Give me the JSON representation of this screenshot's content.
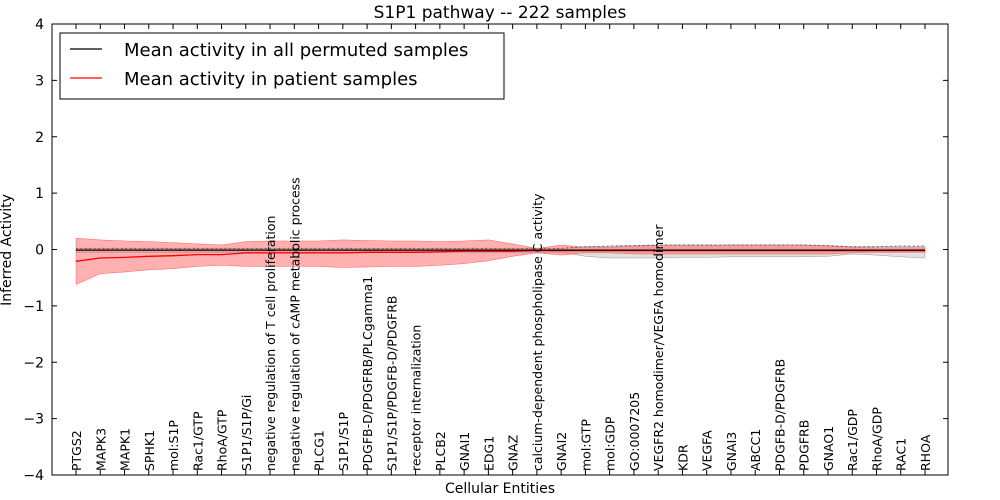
{
  "chart_data": {
    "type": "line",
    "title": "S1P1 pathway -- 222 samples",
    "xlabel": "Cellular Entities",
    "ylabel": "Inferred Activity",
    "ylim": [
      -4,
      4
    ],
    "yticks": [
      -4,
      -3,
      -2,
      -1,
      0,
      1,
      2,
      3,
      4
    ],
    "categories": [
      "PTGS2",
      "MAPK3",
      "MAPK1",
      "SPHK1",
      "mol:S1P",
      "Rac1/GTP",
      "RhoA/GTP",
      "S1P1/S1P/Gi",
      "negative regulation of T cell proliferation",
      "negative regulation of cAMP metabolic process",
      "PLCG1",
      "S1P1/S1P",
      "PDGFB-D/PDGFRB/PLCgamma1",
      "S1P1/S1P/PDGFB-D/PDGFRB",
      "receptor internalization",
      "PLCB2",
      "GNAI1",
      "EDG1",
      "GNAZ",
      "calcium-dependent phospholipase C activity",
      "GNAI2",
      "mol:GTP",
      "mol:GDP",
      "GO:0007205",
      "VEGFR2 homodimer/VEGFA homodimer",
      "KDR",
      "VEGFA",
      "GNAI3",
      "ABCC1",
      "PDGFB-D/PDGFRB",
      "PDGFRB",
      "GNAO1",
      "Rac1/GDP",
      "RhoA/GDP",
      "RAC1",
      "RHOA"
    ],
    "legend_position": "top-left",
    "series": [
      {
        "name": "Mean activity in all permuted samples",
        "color": "#000000",
        "values": [
          -0.01,
          -0.01,
          -0.01,
          -0.01,
          -0.01,
          -0.01,
          -0.01,
          -0.01,
          -0.01,
          -0.01,
          -0.01,
          -0.01,
          -0.01,
          -0.01,
          -0.01,
          -0.01,
          -0.01,
          -0.01,
          -0.01,
          -0.01,
          -0.01,
          -0.01,
          -0.01,
          -0.01,
          -0.01,
          -0.01,
          -0.01,
          -0.01,
          -0.01,
          -0.01,
          -0.01,
          -0.01,
          -0.01,
          -0.01,
          -0.01,
          -0.01
        ],
        "band_lower": [
          -0.05,
          -0.05,
          -0.05,
          -0.05,
          -0.05,
          -0.05,
          -0.05,
          -0.05,
          -0.05,
          -0.05,
          -0.05,
          -0.05,
          -0.05,
          -0.05,
          -0.05,
          -0.05,
          -0.05,
          -0.05,
          -0.05,
          -0.05,
          -0.05,
          -0.12,
          -0.15,
          -0.15,
          -0.15,
          -0.14,
          -0.14,
          -0.13,
          -0.13,
          -0.13,
          -0.13,
          -0.12,
          -0.08,
          -0.1,
          -0.13,
          -0.15
        ],
        "band_upper": [
          0.02,
          0.02,
          0.02,
          0.02,
          0.02,
          0.02,
          0.02,
          0.02,
          0.02,
          0.02,
          0.02,
          0.02,
          0.02,
          0.02,
          0.02,
          0.02,
          0.02,
          0.02,
          0.02,
          0.02,
          0.02,
          0.05,
          0.06,
          0.07,
          0.08,
          0.08,
          0.08,
          0.08,
          0.08,
          0.08,
          0.08,
          0.07,
          0.05,
          0.05,
          0.06,
          0.06
        ]
      },
      {
        "name": "Mean activity in patient samples",
        "color": "#ff0000",
        "values": [
          -0.21,
          -0.15,
          -0.14,
          -0.12,
          -0.11,
          -0.09,
          -0.09,
          -0.06,
          -0.06,
          -0.06,
          -0.06,
          -0.06,
          -0.05,
          -0.05,
          -0.05,
          -0.04,
          -0.03,
          -0.03,
          -0.03,
          -0.02,
          -0.02,
          -0.02,
          -0.02,
          -0.02,
          -0.02,
          -0.02,
          -0.02,
          -0.02,
          -0.02,
          -0.02,
          -0.02,
          -0.02,
          -0.02,
          -0.02,
          -0.02,
          -0.02
        ],
        "band_lower": [
          -0.62,
          -0.43,
          -0.4,
          -0.36,
          -0.34,
          -0.3,
          -0.28,
          -0.3,
          -0.3,
          -0.3,
          -0.3,
          -0.32,
          -0.31,
          -0.3,
          -0.3,
          -0.28,
          -0.25,
          -0.2,
          -0.12,
          -0.06,
          -0.1,
          -0.06,
          -0.06,
          -0.08,
          -0.08,
          -0.08,
          -0.08,
          -0.08,
          -0.08,
          -0.08,
          -0.08,
          -0.08,
          -0.06,
          -0.05,
          -0.05,
          -0.05
        ],
        "band_upper": [
          0.2,
          0.17,
          0.15,
          0.14,
          0.12,
          0.1,
          0.08,
          0.14,
          0.15,
          0.15,
          0.15,
          0.17,
          0.16,
          0.15,
          0.15,
          0.14,
          0.15,
          0.17,
          0.1,
          0.02,
          0.08,
          0.04,
          0.04,
          0.06,
          0.07,
          0.07,
          0.07,
          0.08,
          0.08,
          0.08,
          0.08,
          0.06,
          0.04,
          0.03,
          0.03,
          0.03
        ]
      }
    ],
    "reference_line": {
      "style": "dotted",
      "values_from": "series.0.band_upper"
    }
  }
}
